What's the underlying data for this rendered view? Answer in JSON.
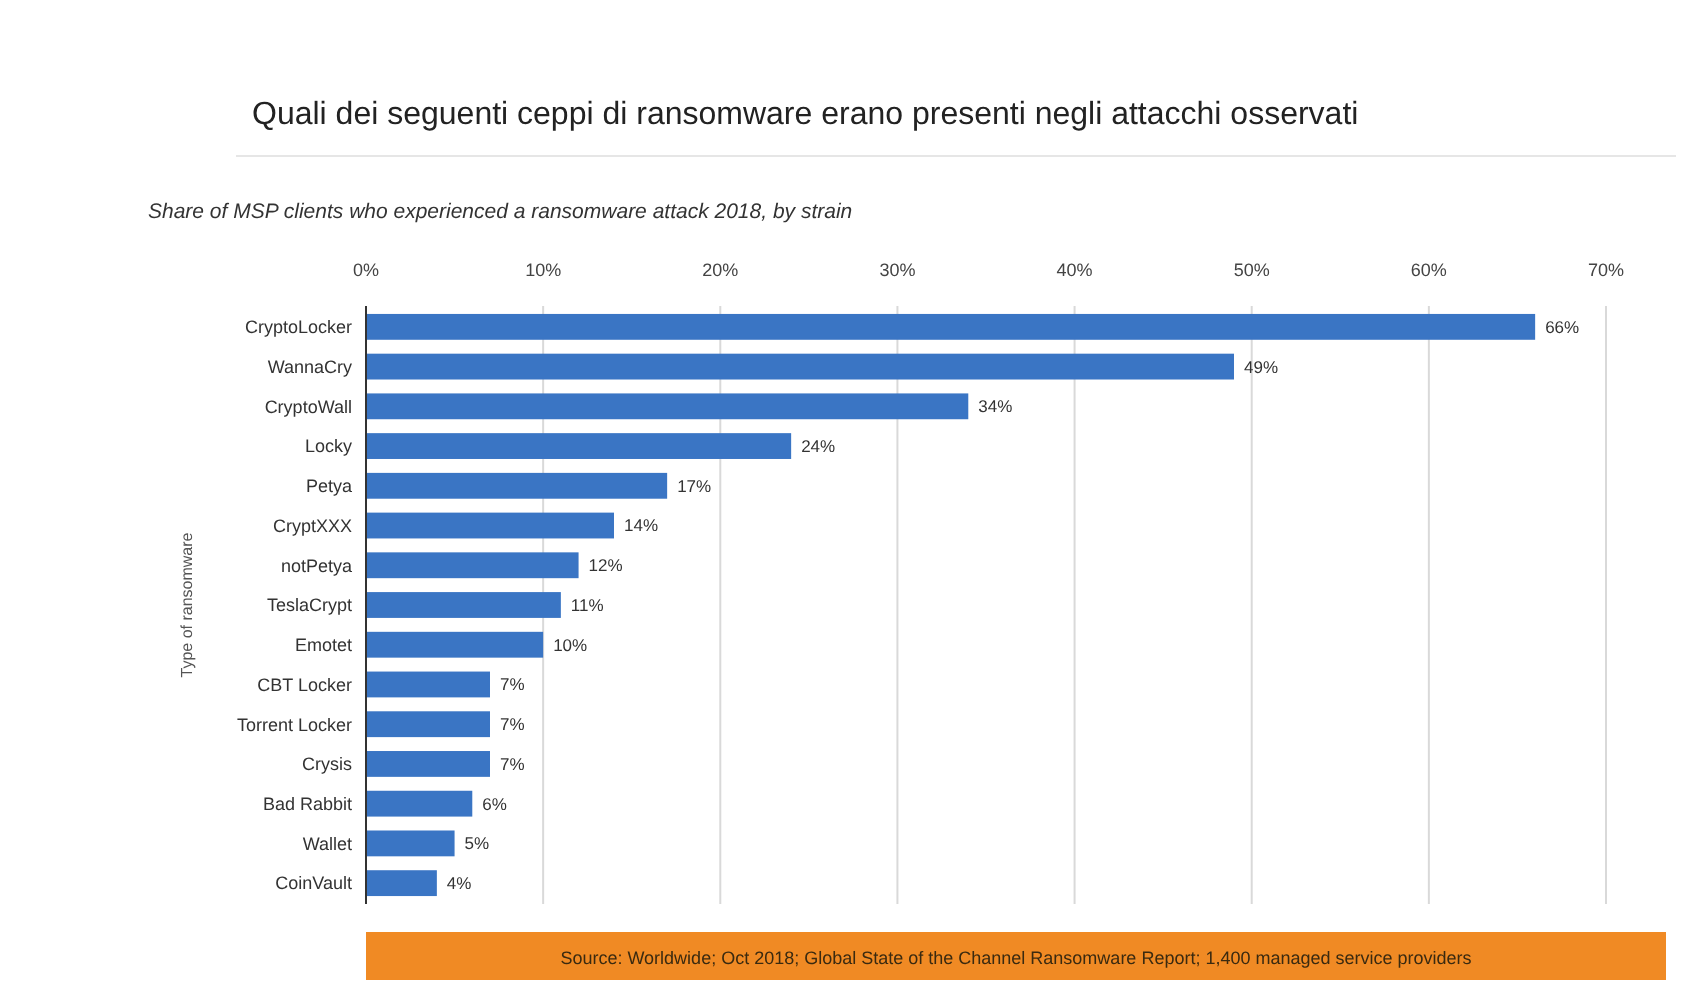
{
  "chart_data": {
    "type": "bar",
    "orientation": "horizontal",
    "title": "Quali dei seguenti ceppi di ransomware erano presenti negli attacchi osservati",
    "subtitle": "Share of MSP clients who experienced a ransomware attack 2018, by strain",
    "ylabel": "Type of ransomware",
    "categories": [
      "CryptoLocker",
      "WannaCry",
      "CryptoWall",
      "Locky",
      "Petya",
      "CryptXXX",
      "notPetya",
      "TeslaCrypt",
      "Emotet",
      "CBT Locker",
      "Torrent Locker",
      "Crysis",
      "Bad Rabbit",
      "Wallet",
      "CoinVault"
    ],
    "values": [
      66,
      49,
      34,
      24,
      17,
      14,
      12,
      11,
      10,
      7,
      7,
      7,
      6,
      5,
      4
    ],
    "value_labels": [
      "66%",
      "49%",
      "34%",
      "24%",
      "17%",
      "14%",
      "12%",
      "11%",
      "10%",
      "7%",
      "7%",
      "7%",
      "6%",
      "5%",
      "4%"
    ],
    "color": "#3a75c4",
    "xlim": [
      0,
      70
    ],
    "xticks": [
      {
        "value": 0,
        "label": "0%"
      },
      {
        "value": 10,
        "label": "10%"
      },
      {
        "value": 20,
        "label": "20%"
      },
      {
        "value": 30,
        "label": "30%"
      },
      {
        "value": 40,
        "label": "40%"
      },
      {
        "value": 50,
        "label": "50%"
      },
      {
        "value": 60,
        "label": "60%"
      },
      {
        "value": 70,
        "label": "70%"
      }
    ],
    "grid": "x",
    "annotations": [
      "Source: Worldwide; Oct 2018; Global State of the Channel Ransomware Report; 1,400 managed service providers"
    ]
  }
}
